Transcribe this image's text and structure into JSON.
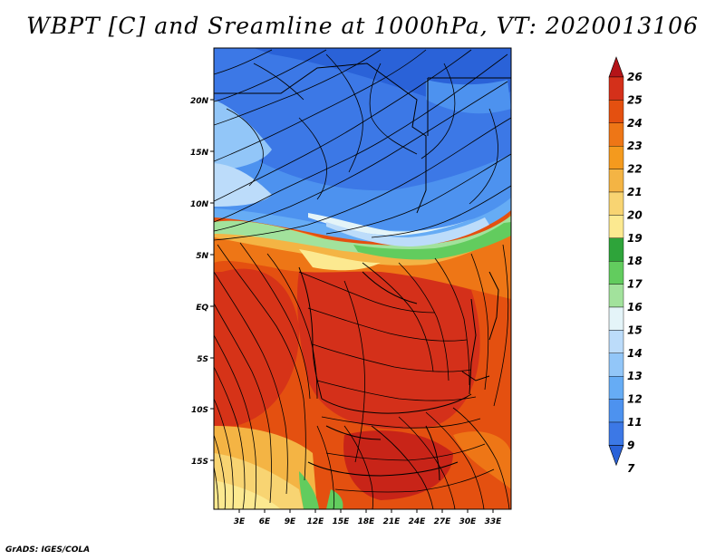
{
  "title": "WBPT [C] and Sreamline at 1000hPa, VT: 2020013106",
  "credit": "GrADS: IGES/COLA",
  "map": {
    "lat_labels": [
      "20N",
      "15N",
      "10N",
      "5N",
      "EQ",
      "5S",
      "10S",
      "15S"
    ],
    "lon_labels": [
      "3E",
      "6E",
      "9E",
      "12E",
      "15E",
      "18E",
      "21E",
      "24E",
      "27E",
      "30E",
      "33E"
    ]
  },
  "colorbar": {
    "levels": [
      "7",
      "9",
      "11",
      "12",
      "13",
      "14",
      "15",
      "16",
      "17",
      "18",
      "19",
      "20",
      "21",
      "22",
      "23",
      "24",
      "25",
      "26"
    ],
    "colors": [
      "#2a62d8",
      "#3c78e6",
      "#4d92ef",
      "#66acf5",
      "#92c6f8",
      "#bcdcfa",
      "#e4f4f8",
      "#a2e29c",
      "#62cc5e",
      "#2ea43a",
      "#fce990",
      "#f8d472",
      "#f4b444",
      "#f49a1e",
      "#ee7616",
      "#e45010",
      "#d4301a",
      "#b41418"
    ]
  }
}
